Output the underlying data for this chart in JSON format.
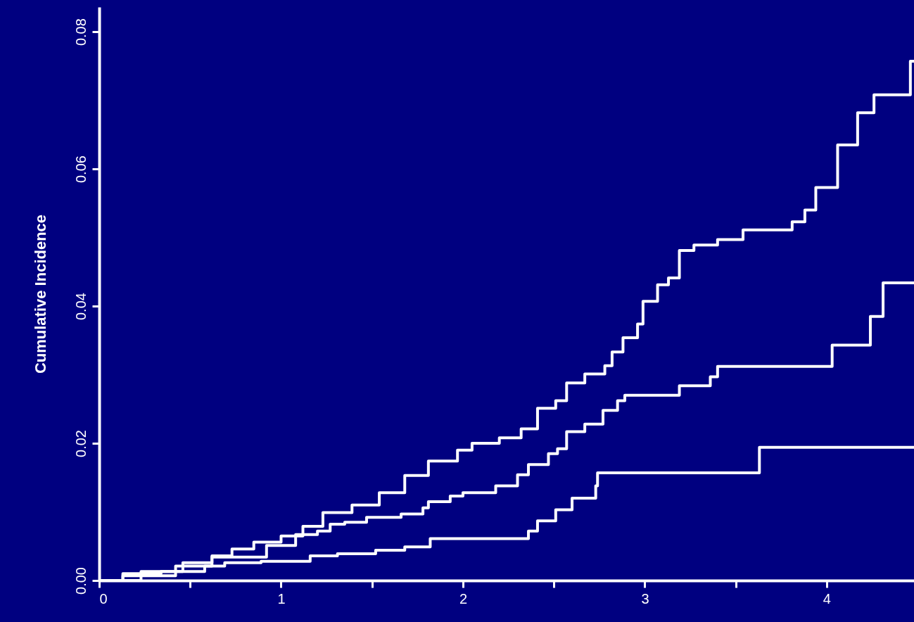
{
  "chart_data": {
    "type": "step",
    "ylabel": "Cumulative Incidence",
    "xlim": [
      0,
      4.48
    ],
    "ylim": [
      0,
      0.0836
    ],
    "xticks": [
      0,
      {
        "value": 0.5,
        "label": null
      },
      1,
      {
        "value": 1.5,
        "label": null
      },
      2,
      {
        "value": 2.5,
        "label": null
      },
      3,
      {
        "value": 3.5,
        "label": null
      },
      4
    ],
    "yticks": [
      {
        "value": 0,
        "label": "0.00"
      },
      {
        "value": 0.02,
        "label": "0.02"
      },
      {
        "value": 0.04,
        "label": "0.04"
      },
      {
        "value": 0.06,
        "label": "0.06"
      },
      {
        "value": 0.08,
        "label": "0.08"
      }
    ],
    "grid": false,
    "line_style": "solid",
    "marker": "none",
    "series": [
      {
        "color": "#ffffff",
        "x": [
          0,
          0.13,
          0.34,
          0.46,
          0.62,
          0.73,
          0.85,
          1.0,
          1.12,
          1.23,
          1.39,
          1.54,
          1.68,
          1.81,
          1.97,
          2.05,
          2.2,
          2.32,
          2.41,
          2.51,
          2.57,
          2.67,
          2.78,
          2.82,
          2.88,
          2.96,
          2.99,
          3.07,
          3.13,
          3.19,
          3.27,
          3.4,
          3.54,
          3.81,
          3.88,
          3.94,
          4.06,
          4.17,
          4.26,
          4.46,
          4.48
        ],
        "values": [
          0,
          0.001,
          0.0013,
          0.0026,
          0.0036,
          0.0046,
          0.0056,
          0.0065,
          0.0079,
          0.0099,
          0.011,
          0.0128,
          0.0153,
          0.0174,
          0.019,
          0.02,
          0.0208,
          0.0221,
          0.0251,
          0.0262,
          0.0288,
          0.0301,
          0.0313,
          0.0333,
          0.0354,
          0.0374,
          0.0407,
          0.0431,
          0.0441,
          0.0481,
          0.0489,
          0.0497,
          0.0511,
          0.0523,
          0.054,
          0.0573,
          0.0635,
          0.0682,
          0.0708,
          0.0757,
          0.0757
        ]
      },
      {
        "color": "#ffffff",
        "x": [
          0,
          0.13,
          0.42,
          0.62,
          0.92,
          1.08,
          1.2,
          1.27,
          1.35,
          1.47,
          1.66,
          1.78,
          1.81,
          1.93,
          2.0,
          2.18,
          2.3,
          2.36,
          2.47,
          2.52,
          2.57,
          2.67,
          2.77,
          2.85,
          2.89,
          3.19,
          3.36,
          3.4,
          4.03,
          4.24,
          4.31,
          4.48
        ],
        "values": [
          0,
          0.0007,
          0.0021,
          0.0034,
          0.0051,
          0.0067,
          0.0072,
          0.0082,
          0.0085,
          0.0092,
          0.0097,
          0.0106,
          0.0115,
          0.0123,
          0.0128,
          0.0138,
          0.0154,
          0.0169,
          0.0185,
          0.0192,
          0.0217,
          0.0228,
          0.0248,
          0.0262,
          0.027,
          0.0284,
          0.0297,
          0.0312,
          0.0343,
          0.0385,
          0.0434,
          0.0434
        ]
      },
      {
        "color": "#ffffff",
        "x": [
          0,
          0.23,
          0.58,
          0.69,
          0.89,
          1.16,
          1.31,
          1.52,
          1.68,
          1.82,
          2.36,
          2.41,
          2.51,
          2.6,
          2.73,
          2.74,
          3.63,
          4.48
        ],
        "values": [
          0,
          0.0013,
          0.0021,
          0.0026,
          0.0028,
          0.0036,
          0.0039,
          0.0044,
          0.0049,
          0.0061,
          0.0072,
          0.0087,
          0.0103,
          0.012,
          0.0138,
          0.0157,
          0.0194,
          0.0194
        ]
      }
    ]
  }
}
